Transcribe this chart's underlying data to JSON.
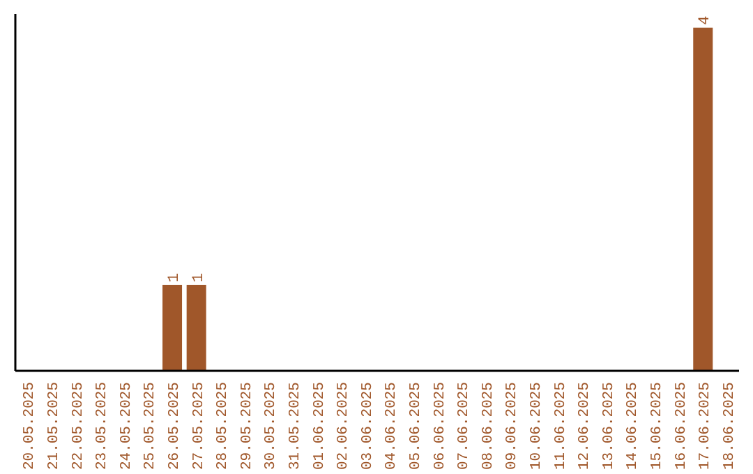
{
  "chart_data": {
    "type": "bar",
    "categories": [
      "20.05.2025",
      "21.05.2025",
      "22.05.2025",
      "23.05.2025",
      "24.05.2025",
      "25.05.2025",
      "26.05.2025",
      "27.05.2025",
      "28.05.2025",
      "29.05.2025",
      "30.05.2025",
      "31.05.2025",
      "01.06.2025",
      "02.06.2025",
      "03.06.2025",
      "04.06.2025",
      "05.06.2025",
      "06.06.2025",
      "07.06.2025",
      "08.06.2025",
      "09.06.2025",
      "10.06.2025",
      "11.06.2025",
      "12.06.2025",
      "13.06.2025",
      "14.06.2025",
      "15.06.2025",
      "16.06.2025",
      "17.06.2025",
      "18.06.2025"
    ],
    "values": [
      0,
      0,
      0,
      0,
      0,
      0,
      1,
      1,
      0,
      0,
      0,
      0,
      0,
      0,
      0,
      0,
      0,
      0,
      0,
      0,
      0,
      0,
      0,
      0,
      0,
      0,
      0,
      0,
      4,
      0
    ],
    "value_labels": [
      null,
      null,
      null,
      null,
      null,
      null,
      "1",
      "1",
      null,
      null,
      null,
      null,
      null,
      null,
      null,
      null,
      null,
      null,
      null,
      null,
      null,
      null,
      null,
      null,
      null,
      null,
      null,
      null,
      "4",
      null
    ],
    "color": "#a0572a",
    "grid": false
  }
}
